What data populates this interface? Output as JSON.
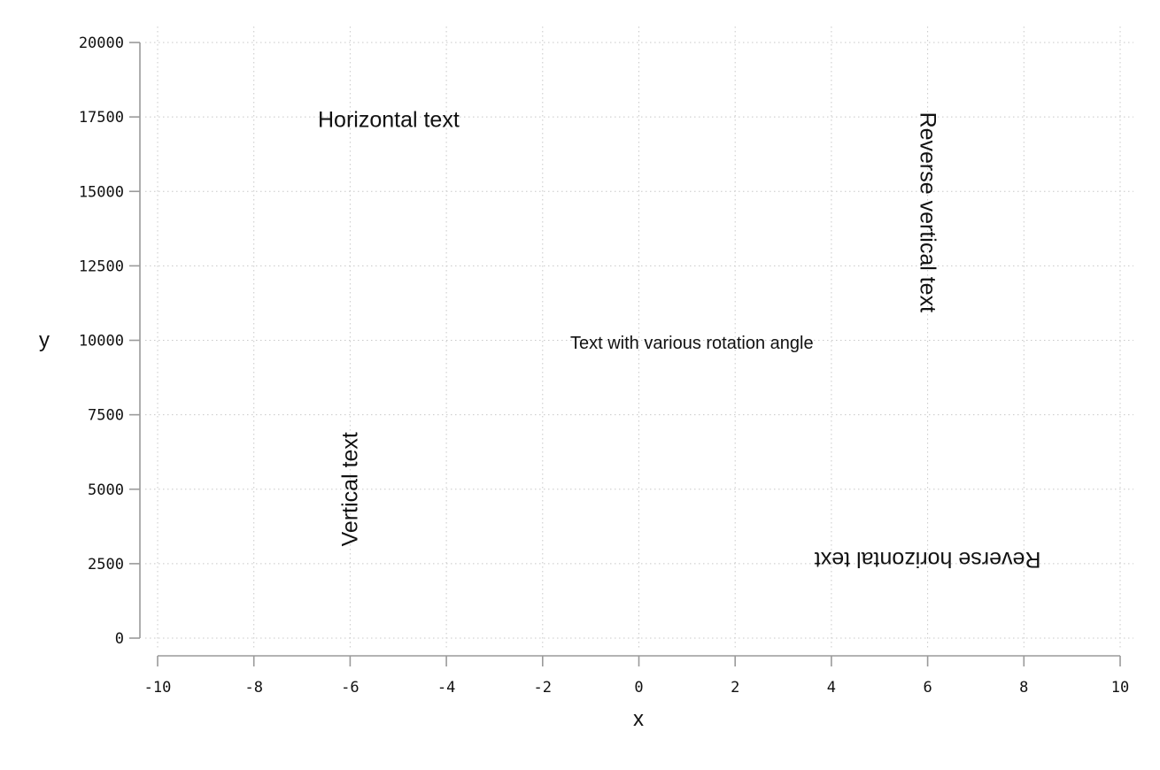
{
  "chart_data": {
    "type": "scatter",
    "title": "",
    "xlabel": "x",
    "ylabel": "y",
    "xlim": [
      -10,
      10
    ],
    "ylim": [
      0,
      20000
    ],
    "x_ticks": [
      -10,
      -8,
      -6,
      -4,
      -2,
      0,
      2,
      4,
      6,
      8,
      10
    ],
    "y_ticks": [
      0,
      2500,
      5000,
      7500,
      10000,
      12500,
      15000,
      17500,
      20000
    ],
    "x_tick_labels": [
      "-10",
      "-8",
      "-6",
      "-4",
      "-2",
      "0",
      "2",
      "4",
      "6",
      "8",
      "10"
    ],
    "y_tick_labels": [
      "0",
      "2500",
      "5000",
      "7500",
      "10000",
      "12500",
      "15000",
      "17500",
      "20000"
    ],
    "grid": true,
    "legend": "none",
    "annotations": [
      {
        "text": "Horizontal text",
        "x": -5.2,
        "y": 17400,
        "rotation": 0,
        "size": "large"
      },
      {
        "text": "Vertical text",
        "x": -6.0,
        "y": 5000,
        "rotation": 90,
        "size": "large"
      },
      {
        "text": "Text with various rotation angle",
        "x": 1.1,
        "y": 9900,
        "rotation": 0,
        "size": "medium"
      },
      {
        "text": "Reverse vertical text",
        "x": 6.0,
        "y": 14300,
        "rotation": 270,
        "size": "large"
      },
      {
        "text": "Reverse horizontal text",
        "x": 6.0,
        "y": 2650,
        "rotation": 180,
        "size": "large"
      }
    ]
  }
}
